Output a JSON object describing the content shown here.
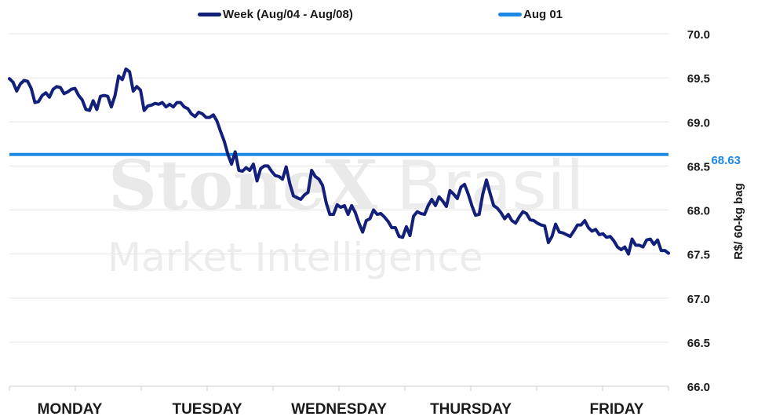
{
  "watermark": {
    "brand": "StoneX",
    "region": "Brasil",
    "tagline": "Market Intelligence"
  },
  "legend": [
    {
      "label": "Week (Aug/04 - Aug/08)",
      "color": "#13207a"
    },
    {
      "label": "Aug 01",
      "color": "#1e88e5"
    }
  ],
  "chart_data": {
    "type": "line",
    "ylabel": "R$/ 60-kg bag",
    "ylim": [
      66.0,
      70.0
    ],
    "y_ticks": [
      "66.0",
      "66.5",
      "67.0",
      "67.5",
      "68.0",
      "68.5",
      "69.0",
      "69.5",
      "70.0"
    ],
    "x_ticks": [
      "MONDAY",
      "TUESDAY",
      "WEDNESDAY",
      "THURSDAY",
      "FRIDAY"
    ],
    "gridlines": true,
    "reference_line": {
      "name": "Aug 01",
      "value": 68.63,
      "label": "68.63",
      "color": "#1e88e5"
    },
    "series": [
      {
        "name": "Week (Aug/04 - Aug/08)",
        "color": "#13207a",
        "values": [
          69.49,
          69.45,
          69.35,
          69.43,
          69.47,
          69.46,
          69.38,
          69.22,
          69.23,
          69.3,
          69.33,
          69.28,
          69.37,
          69.4,
          69.39,
          69.32,
          69.34,
          69.37,
          69.38,
          69.3,
          69.25,
          69.14,
          69.13,
          69.24,
          69.14,
          69.29,
          69.3,
          69.29,
          69.17,
          69.3,
          69.52,
          69.48,
          69.6,
          69.57,
          69.35,
          69.4,
          69.36,
          69.13,
          69.18,
          69.19,
          69.21,
          69.2,
          69.22,
          69.17,
          69.2,
          69.17,
          69.22,
          69.22,
          69.17,
          69.15,
          69.09,
          69.06,
          69.11,
          69.09,
          69.05,
          69.05,
          69.08,
          69.01,
          68.89,
          68.78,
          68.63,
          68.52,
          68.66,
          68.45,
          68.44,
          68.48,
          68.45,
          68.52,
          68.33,
          68.47,
          68.5,
          68.5,
          68.44,
          68.39,
          68.38,
          68.35,
          68.49,
          68.3,
          68.16,
          68.14,
          68.12,
          68.17,
          68.2,
          68.45,
          68.38,
          68.35,
          68.28,
          68.08,
          67.95,
          67.95,
          68.06,
          68.03,
          68.05,
          67.95,
          68.05,
          67.97,
          67.85,
          67.75,
          67.88,
          67.9,
          68.0,
          67.95,
          67.96,
          67.92,
          67.87,
          67.8,
          67.8,
          67.7,
          67.69,
          67.81,
          67.71,
          67.93,
          67.98,
          67.96,
          67.95,
          68.05,
          68.12,
          68.05,
          68.15,
          68.1,
          68.04,
          68.22,
          68.18,
          68.13,
          68.26,
          68.29,
          68.18,
          68.05,
          67.94,
          67.95,
          68.18,
          68.34,
          68.19,
          68.05,
          68.02,
          67.97,
          67.9,
          67.95,
          67.88,
          67.85,
          67.92,
          67.98,
          67.96,
          67.89,
          67.88,
          67.85,
          67.83,
          67.82,
          67.63,
          67.7,
          67.84,
          67.75,
          67.74,
          67.72,
          67.7,
          67.76,
          67.83,
          67.83,
          67.88,
          67.8,
          67.76,
          67.78,
          67.72,
          67.73,
          67.69,
          67.7,
          67.65,
          67.58,
          67.55,
          67.58,
          67.5,
          67.67,
          67.6,
          67.6,
          67.58,
          67.66,
          67.67,
          67.61,
          67.66,
          67.54,
          67.54,
          67.51
        ]
      }
    ]
  }
}
